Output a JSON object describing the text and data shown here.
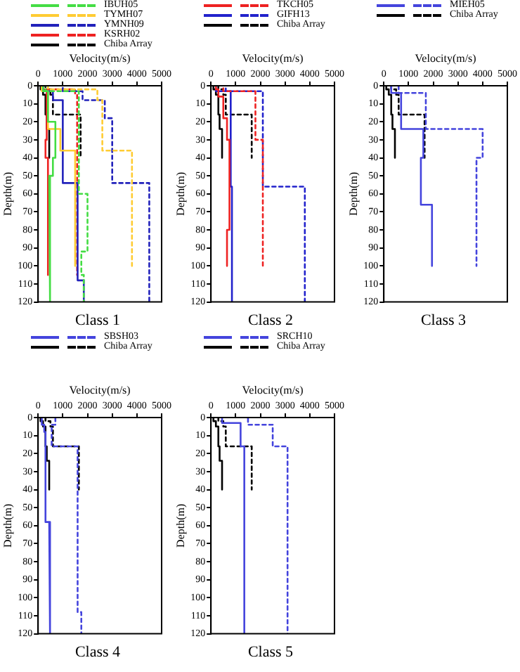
{
  "chart_data": [
    {
      "type": "line",
      "title": "Class 1",
      "xlabel": "Velocity(m/s)",
      "ylabel": "Depth(m)",
      "xlim": [
        0,
        5000
      ],
      "xticks": [
        0,
        1000,
        2000,
        3000,
        4000,
        5000
      ],
      "ylim": [
        120,
        0
      ],
      "yticks": [
        0,
        10,
        20,
        30,
        40,
        50,
        60,
        70,
        80,
        90,
        100,
        110,
        120
      ],
      "grid": false,
      "legend": "top",
      "marker": "none",
      "series": [
        {
          "name": "IBUH05",
          "color": "#44dd44",
          "line_style": "solid",
          "x": [
            200,
            200,
            400,
            400,
            700,
            700,
            600,
            600,
            450,
            450,
            500,
            500
          ],
          "values": [
            0,
            3,
            3,
            20,
            20,
            40,
            40,
            50,
            50,
            104,
            104,
            120
          ]
        },
        {
          "color": "#44dd44",
          "line_style": "dashed",
          "x": [
            300,
            300,
            1650,
            1650,
            2000,
            2000,
            1750,
            1750,
            1850,
            1850
          ],
          "values": [
            0,
            3,
            3,
            60,
            60,
            92,
            92,
            105,
            105,
            120
          ]
        },
        {
          "name": "TYMH07",
          "color": "#ffcc33",
          "line_style": "solid",
          "x": [
            150,
            150,
            400,
            400,
            900,
            900,
            1500,
            1500
          ],
          "values": [
            0,
            3,
            3,
            24,
            24,
            36,
            36,
            100
          ]
        },
        {
          "color": "#ffcc33",
          "line_style": "dashed",
          "x": [
            400,
            400,
            2400,
            2400,
            2600,
            2600,
            3800,
            3800
          ],
          "values": [
            0,
            2,
            2,
            8,
            8,
            36,
            36,
            100
          ]
        },
        {
          "name": "YMNH09",
          "color": "#2222bb",
          "line_style": "solid",
          "x": [
            200,
            200,
            600,
            600,
            1000,
            1000,
            1600,
            1600,
            1850,
            1850
          ],
          "values": [
            0,
            3,
            3,
            8,
            8,
            54,
            54,
            108,
            108,
            120
          ]
        },
        {
          "color": "#2222bb",
          "line_style": "dashed",
          "x": [
            1000,
            1000,
            1800,
            1800,
            2700,
            2700,
            3000,
            3000,
            4500,
            4500
          ],
          "values": [
            0,
            3,
            3,
            8,
            8,
            18,
            18,
            54,
            54,
            120
          ]
        },
        {
          "name": "KSRH02",
          "color": "#ee2222",
          "line_style": "solid",
          "x": [
            150,
            150,
            350,
            350,
            300,
            300,
            400,
            400
          ],
          "values": [
            0,
            2,
            2,
            30,
            30,
            40,
            40,
            105
          ]
        },
        {
          "color": "#ee2222",
          "line_style": "dashed",
          "x": [
            400,
            400,
            1500,
            1500,
            1580,
            1580
          ],
          "values": [
            0,
            2,
            2,
            5,
            5,
            105
          ]
        },
        {
          "name": "Chiba Array",
          "color": "#000000",
          "line_style": "solid",
          "x": [
            100,
            100,
            200,
            200,
            300,
            300,
            350,
            350,
            450,
            450
          ],
          "values": [
            0,
            2,
            2,
            5,
            5,
            16,
            16,
            24,
            24,
            40
          ]
        },
        {
          "color": "#000000",
          "line_style": "dashed",
          "x": [
            300,
            300,
            500,
            500,
            600,
            600,
            1720,
            1720
          ],
          "values": [
            0,
            2,
            2,
            5,
            5,
            16,
            16,
            40
          ]
        }
      ]
    },
    {
      "type": "line",
      "title": "Class 2",
      "xlabel": "Velocity(m/s)",
      "ylabel": "Depth(m)",
      "xlim": [
        0,
        5000
      ],
      "xticks": [
        0,
        1000,
        2000,
        3000,
        4000,
        5000
      ],
      "ylim": [
        120,
        0
      ],
      "yticks": [
        0,
        10,
        20,
        30,
        40,
        50,
        60,
        70,
        80,
        90,
        100,
        110,
        120
      ],
      "grid": false,
      "legend": "top",
      "marker": "none",
      "series": [
        {
          "name": "TKCH05",
          "color": "#ee2222",
          "line_style": "solid",
          "x": [
            200,
            200,
            300,
            300,
            500,
            500,
            650,
            650,
            750,
            750,
            650,
            650
          ],
          "values": [
            0,
            2,
            2,
            6,
            6,
            18,
            18,
            30,
            30,
            80,
            80,
            100
          ]
        },
        {
          "color": "#ee2222",
          "line_style": "dashed",
          "x": [
            500,
            500,
            1800,
            1800,
            2100,
            2100
          ],
          "values": [
            0,
            3,
            3,
            30,
            30,
            100
          ]
        },
        {
          "name": "GIFH13",
          "color": "#2222cc",
          "line_style": "solid",
          "x": [
            200,
            200,
            800,
            800,
            850,
            850
          ],
          "values": [
            0,
            3,
            3,
            56,
            56,
            120
          ]
        },
        {
          "color": "#2222cc",
          "line_style": "dashed",
          "x": [
            600,
            600,
            2100,
            2100,
            3800,
            3800
          ],
          "values": [
            0,
            3,
            3,
            56,
            56,
            120
          ]
        },
        {
          "name": "Chiba Array",
          "color": "#000000",
          "line_style": "solid",
          "x": [
            100,
            100,
            200,
            200,
            300,
            300,
            350,
            350,
            450,
            450
          ],
          "values": [
            0,
            2,
            2,
            5,
            5,
            16,
            16,
            24,
            24,
            40
          ]
        },
        {
          "color": "#000000",
          "line_style": "dashed",
          "x": [
            300,
            300,
            500,
            500,
            600,
            600,
            1650,
            1650
          ],
          "values": [
            0,
            2,
            2,
            5,
            5,
            16,
            16,
            40
          ]
        }
      ]
    },
    {
      "type": "line",
      "title": "Class 3",
      "xlabel": "Velocity(m/s)",
      "ylabel": "Depth(m)",
      "xlim": [
        0,
        5000
      ],
      "xticks": [
        0,
        1000,
        2000,
        3000,
        4000,
        5000
      ],
      "ylim": [
        120,
        0
      ],
      "yticks": [
        0,
        10,
        20,
        30,
        40,
        50,
        60,
        70,
        80,
        90,
        100,
        110,
        120
      ],
      "grid": false,
      "legend": "top",
      "marker": "none",
      "series": [
        {
          "name": "MIEH05",
          "color": "#4444dd",
          "line_style": "solid",
          "x": [
            300,
            300,
            700,
            700,
            1600,
            1600,
            1500,
            1500,
            1950,
            1950
          ],
          "values": [
            0,
            4,
            4,
            24,
            24,
            40,
            40,
            66,
            66,
            100
          ]
        },
        {
          "color": "#4444dd",
          "line_style": "dashed",
          "x": [
            600,
            600,
            1700,
            1700,
            4000,
            4000,
            3750,
            3750
          ],
          "values": [
            0,
            4,
            4,
            24,
            24,
            40,
            40,
            100
          ]
        },
        {
          "name": "Chiba Array",
          "color": "#000000",
          "line_style": "solid",
          "x": [
            100,
            100,
            200,
            200,
            300,
            300,
            350,
            350,
            450,
            450
          ],
          "values": [
            0,
            2,
            2,
            5,
            5,
            16,
            16,
            24,
            24,
            40
          ]
        },
        {
          "color": "#000000",
          "line_style": "dashed",
          "x": [
            300,
            300,
            500,
            500,
            600,
            600,
            1650,
            1650
          ],
          "values": [
            0,
            2,
            2,
            5,
            5,
            16,
            16,
            40
          ]
        }
      ]
    },
    {
      "type": "line",
      "title": "Class 4",
      "xlabel": "Velocity(m/s)",
      "ylabel": "Depth(m)",
      "xlim": [
        0,
        5000
      ],
      "xticks": [
        0,
        1000,
        2000,
        3000,
        4000,
        5000
      ],
      "ylim": [
        120,
        0
      ],
      "yticks": [
        0,
        10,
        20,
        30,
        40,
        50,
        60,
        70,
        80,
        90,
        100,
        110,
        120
      ],
      "grid": false,
      "legend": "top",
      "marker": "none",
      "series": [
        {
          "name": "SBSH03",
          "color": "#4444dd",
          "line_style": "solid",
          "x": [
            150,
            150,
            250,
            250,
            300,
            300,
            450,
            450,
            500,
            500
          ],
          "values": [
            0,
            4,
            4,
            8,
            8,
            58,
            58,
            108,
            108,
            120
          ]
        },
        {
          "color": "#4444dd",
          "line_style": "dashed",
          "x": [
            700,
            700,
            550,
            550,
            1600,
            1600,
            1750,
            1750
          ],
          "values": [
            0,
            4,
            4,
            16,
            16,
            108,
            108,
            120
          ]
        },
        {
          "name": "Chiba Array",
          "color": "#000000",
          "line_style": "solid",
          "x": [
            100,
            100,
            200,
            200,
            300,
            300,
            350,
            350,
            450,
            450
          ],
          "values": [
            0,
            2,
            2,
            5,
            5,
            16,
            16,
            24,
            24,
            40
          ]
        },
        {
          "color": "#000000",
          "line_style": "dashed",
          "x": [
            300,
            300,
            500,
            500,
            600,
            600,
            1650,
            1650
          ],
          "values": [
            0,
            2,
            2,
            5,
            5,
            16,
            16,
            40
          ]
        }
      ]
    },
    {
      "type": "line",
      "title": "Class 5",
      "xlabel": "Velocity(m/s)",
      "ylabel": "Depth(m)",
      "xlim": [
        0,
        5000
      ],
      "xticks": [
        0,
        1000,
        2000,
        3000,
        4000,
        5000
      ],
      "ylim": [
        120,
        0
      ],
      "yticks": [
        0,
        10,
        20,
        30,
        40,
        50,
        60,
        70,
        80,
        90,
        100,
        110,
        120
      ],
      "grid": false,
      "legend": "top",
      "marker": "none",
      "series": [
        {
          "name": "SRCH10",
          "color": "#4444dd",
          "line_style": "solid",
          "x": [
            450,
            450,
            1200,
            1200,
            1350,
            1350
          ],
          "values": [
            0,
            3,
            3,
            16,
            16,
            120
          ]
        },
        {
          "color": "#4444dd",
          "line_style": "dashed",
          "x": [
            1500,
            1500,
            2500,
            2500,
            3100,
            3100
          ],
          "values": [
            0,
            4,
            4,
            16,
            16,
            120
          ]
        },
        {
          "name": "Chiba Array",
          "color": "#000000",
          "line_style": "solid",
          "x": [
            100,
            100,
            200,
            200,
            300,
            300,
            350,
            350,
            450,
            450
          ],
          "values": [
            0,
            2,
            2,
            5,
            5,
            16,
            16,
            24,
            24,
            40
          ]
        },
        {
          "color": "#000000",
          "line_style": "dashed",
          "x": [
            300,
            300,
            500,
            500,
            600,
            600,
            1650,
            1650
          ],
          "values": [
            0,
            2,
            2,
            5,
            5,
            16,
            16,
            40
          ]
        }
      ]
    }
  ]
}
